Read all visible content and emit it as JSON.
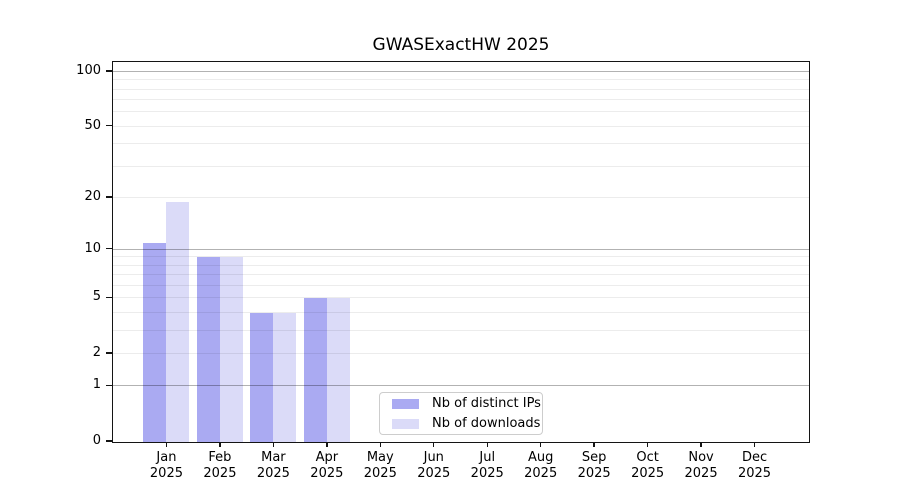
{
  "chart_data": {
    "type": "bar",
    "title": "GWASExactHW 2025",
    "year_label": "2025",
    "categories": [
      "Jan",
      "Feb",
      "Mar",
      "Apr",
      "May",
      "Jun",
      "Jul",
      "Aug",
      "Sep",
      "Oct",
      "Nov",
      "Dec"
    ],
    "series": [
      {
        "name": "Nb of distinct IPs",
        "color": "#aaaaf2",
        "values": [
          11,
          9,
          4,
          5,
          0,
          0,
          0,
          0,
          0,
          0,
          0,
          0
        ]
      },
      {
        "name": "Nb of downloads",
        "color": "#dbdbf8",
        "values": [
          19,
          9,
          4,
          5,
          0,
          0,
          0,
          0,
          0,
          0,
          0,
          0
        ]
      }
    ],
    "yscale": "log1p",
    "ylim": [
      0,
      112
    ],
    "y_ticks": [
      0,
      1,
      2,
      5,
      10,
      20,
      50,
      100
    ],
    "y_gridlines": {
      "major": [
        1,
        10,
        100
      ],
      "minor": [
        2,
        3,
        4,
        5,
        6,
        7,
        8,
        9,
        20,
        30,
        40,
        50,
        60,
        70,
        80,
        90
      ]
    },
    "legend": {
      "position": "lower-center",
      "entries": [
        "Nb of distinct IPs",
        "Nb of downloads"
      ]
    },
    "colors": {
      "background": "#ffffff",
      "spine": "#141414",
      "grid_major": "#b3b3b3",
      "grid_minor": "#ececec",
      "text": "#000000",
      "legend_border": "#cdcdcd"
    }
  }
}
